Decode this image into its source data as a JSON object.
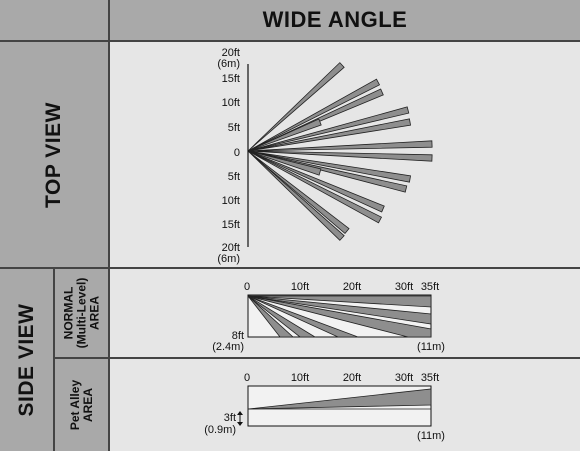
{
  "header": {
    "title": "WIDE ANGLE"
  },
  "top_view": {
    "label": "TOP VIEW",
    "ticks_upper": [
      "20ft",
      "15ft",
      "10ft",
      "5ft"
    ],
    "tick_zero": "0",
    "ticks_lower": [
      "5ft",
      "10ft",
      "15ft",
      "20ft"
    ],
    "metric_top": "(6m)",
    "metric_bottom": "(6m)"
  },
  "side_view": {
    "label": "SIDE VIEW",
    "normal": {
      "label_line1": "NORMAL",
      "label_line2": "(Multi-Level)",
      "label_line3": "AREA",
      "ticks": [
        "0",
        "10ft",
        "20ft",
        "30ft",
        "35ft"
      ],
      "height_ft": "8ft",
      "height_m": "(2.4m)",
      "range_m": "(11m)"
    },
    "pet": {
      "label_line1": "Pet Alley",
      "label_line2": "AREA",
      "ticks": [
        "0",
        "10ft",
        "20ft",
        "30ft",
        "35ft"
      ],
      "height_ft": "3ft",
      "height_m": "(0.9m)",
      "range_m": "(11m)"
    }
  },
  "colors": {
    "beam_fill": "#8e8e8e",
    "beam_edge": "#222222",
    "panel_bg": "#e6e6e6",
    "label_bg": "#a9a9a9"
  }
}
